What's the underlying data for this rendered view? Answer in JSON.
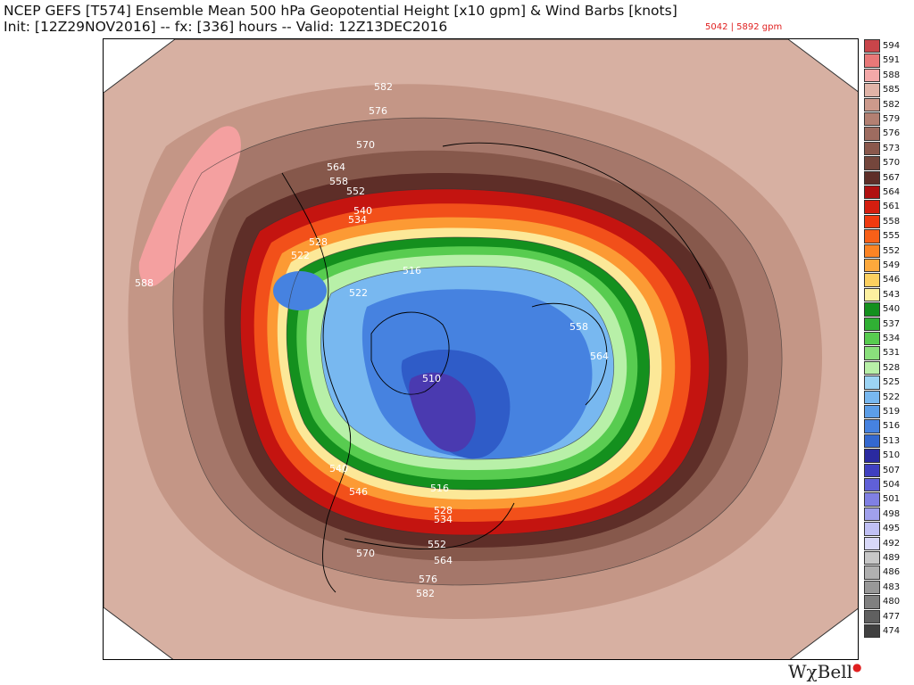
{
  "header": {
    "line1": "NCEP GEFS [T574] Ensemble Mean 500 hPa Geopotential Height [x10 gpm] & Wind Barbs [knots]",
    "line2": "Init: [12Z29NOV2016] -- fx: [336] hours -- Valid: 12Z13DEC2016",
    "range": "5042 | 5892 gpm"
  },
  "legend": {
    "levels": [
      "594",
      "591",
      "588",
      "585",
      "582",
      "579",
      "576",
      "573",
      "570",
      "567",
      "564",
      "561",
      "558",
      "555",
      "552",
      "549",
      "546",
      "543",
      "540",
      "537",
      "534",
      "531",
      "528",
      "525",
      "522",
      "519",
      "516",
      "513",
      "510",
      "507",
      "504",
      "501",
      "498",
      "495",
      "492",
      "489",
      "486",
      "483",
      "480",
      "477",
      "474"
    ],
    "colors": [
      "#c8454a",
      "#e87878",
      "#f4a8a8",
      "#e0b4a8",
      "#cc9a8c",
      "#b38072",
      "#9e6c60",
      "#8a584c",
      "#74463c",
      "#5e2e28",
      "#b01010",
      "#d41e10",
      "#f03a10",
      "#f86018",
      "#fc8424",
      "#fca83c",
      "#fcd060",
      "#fcf0a0",
      "#14901e",
      "#30b034",
      "#58cc50",
      "#8ae07c",
      "#b8f0a8",
      "#9cd4f4",
      "#78b8f0",
      "#5c9ee8",
      "#4682e0",
      "#3468d0",
      "#2a2aa0",
      "#4040c0",
      "#6060d8",
      "#8080e4",
      "#a0a0ec",
      "#c0c0f4",
      "#d8d8f8",
      "#c8c8c8",
      "#b0b0b0",
      "#989898",
      "#808080",
      "#606060",
      "#404040"
    ]
  },
  "map": {
    "labels": [
      {
        "text": "582",
        "color": "#ffffff"
      },
      {
        "text": "576",
        "color": "#ffffff"
      },
      {
        "text": "570",
        "color": "#ffffff"
      },
      {
        "text": "564",
        "color": "#ffffff"
      },
      {
        "text": "558",
        "color": "#ffffff"
      },
      {
        "text": "552",
        "color": "#ffffff"
      },
      {
        "text": "540",
        "color": "#ffffff"
      },
      {
        "text": "534",
        "color": "#ffffff"
      },
      {
        "text": "528",
        "color": "#ffffff"
      },
      {
        "text": "522",
        "color": "#ffffff"
      },
      {
        "text": "516",
        "color": "#ffffff"
      },
      {
        "text": "522",
        "color": "#ffffff"
      },
      {
        "text": "588",
        "color": "#ffffff"
      },
      {
        "text": "558",
        "color": "#ffffff"
      },
      {
        "text": "564",
        "color": "#ffffff"
      },
      {
        "text": "510",
        "color": "#ffffff"
      },
      {
        "text": "540",
        "color": "#ffffff"
      },
      {
        "text": "546",
        "color": "#ffffff"
      },
      {
        "text": "516",
        "color": "#ffffff"
      },
      {
        "text": "528",
        "color": "#ffffff"
      },
      {
        "text": "534",
        "color": "#ffffff"
      },
      {
        "text": "552",
        "color": "#ffffff"
      },
      {
        "text": "564",
        "color": "#ffffff"
      },
      {
        "text": "570",
        "color": "#ffffff"
      },
      {
        "text": "576",
        "color": "#ffffff"
      },
      {
        "text": "582",
        "color": "#ffffff"
      }
    ]
  },
  "brand": {
    "name": "WχBell",
    "dot": "●"
  }
}
